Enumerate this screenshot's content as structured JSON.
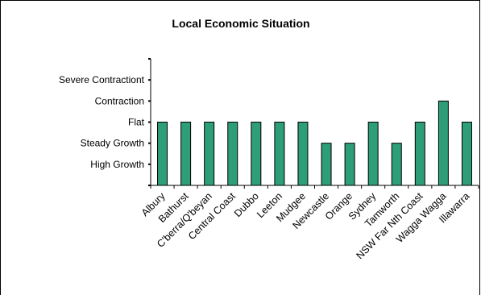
{
  "chart_data": {
    "type": "bar",
    "title": "Local Economic Situation",
    "categories": [
      "Albury",
      "Bathurst",
      "C'berra/Q'beyan",
      "Central Coast",
      "Dubbo",
      "Leeton",
      "Mudgee",
      "Newcastle",
      "Orange",
      "Sydney",
      "Tamworth",
      "NSW Far Nth Coast",
      "Wagga Wagga",
      "Illawarra"
    ],
    "y_levels": [
      "High Growth",
      "Steady Growth",
      "Flat",
      "Contraction",
      "Severe Contractiont"
    ],
    "values": [
      3,
      3,
      3,
      3,
      3,
      3,
      3,
      2,
      2,
      3,
      2,
      3,
      4,
      3
    ],
    "ylim": [
      0,
      6
    ],
    "grid": false,
    "legend": "none",
    "bar_color": "#2e9e78"
  }
}
